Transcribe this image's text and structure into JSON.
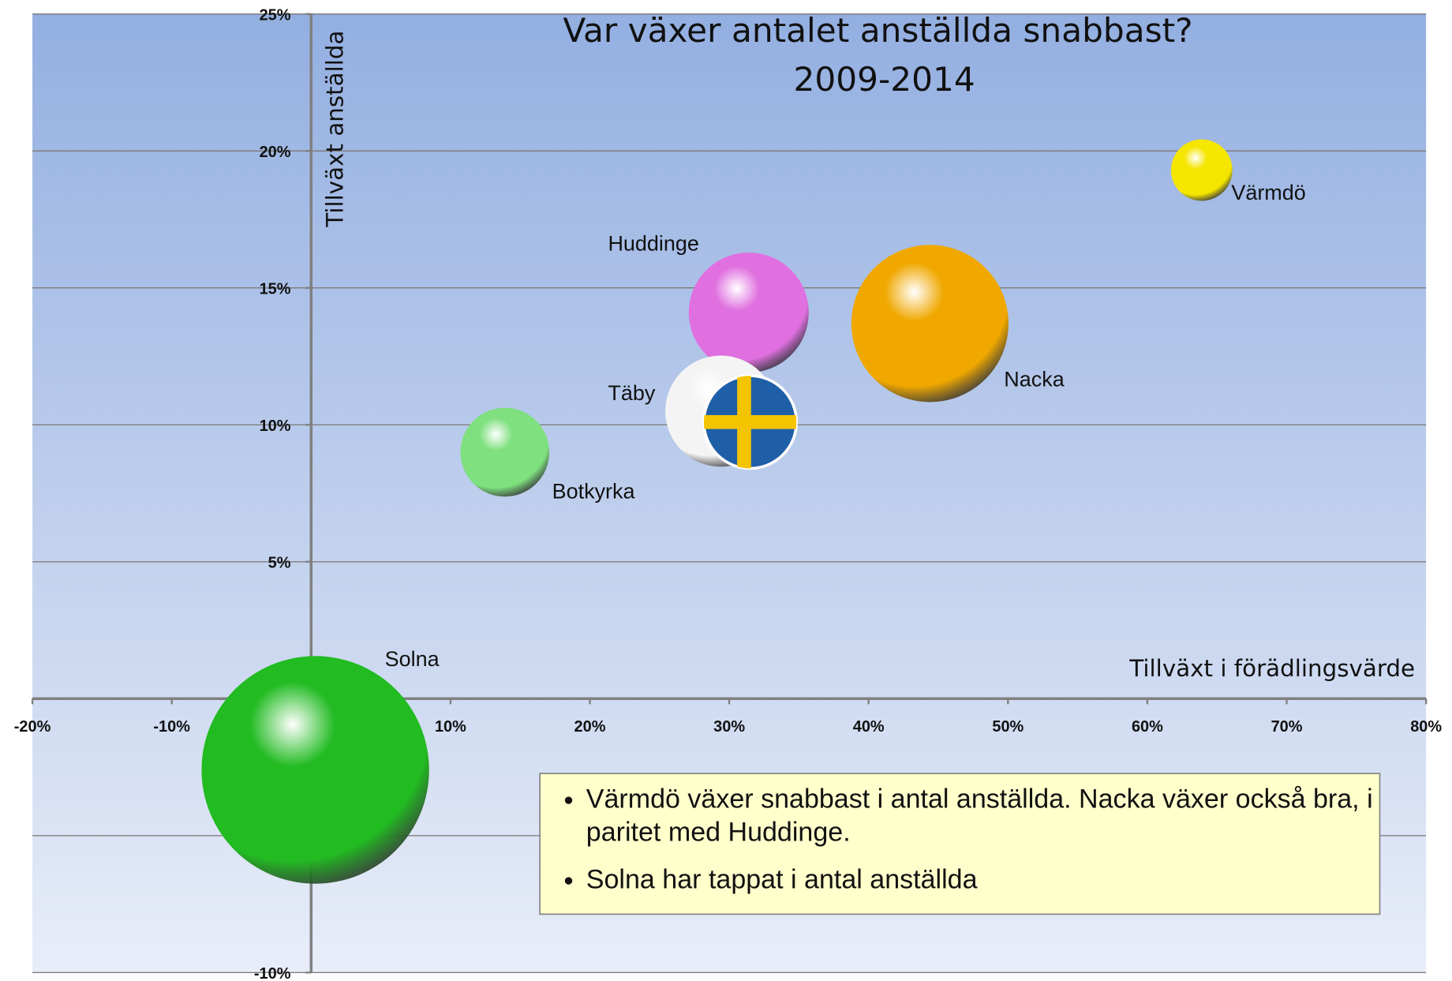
{
  "chart_data": {
    "type": "bubble",
    "title": "Var växer antalet anställda snabbast?",
    "subtitle": "2009-2014",
    "x_label": "Tillväxt i förädlingsvärde",
    "y_label": "Tillväxt anställda",
    "xlim": [
      -20,
      80
    ],
    "ylim": [
      -10,
      25
    ],
    "xticks": [
      {
        "value": -20,
        "label": "-20%"
      },
      {
        "value": -10,
        "label": "-10%"
      },
      {
        "value": 0,
        "label": "0%"
      },
      {
        "value": 10,
        "label": "10%"
      },
      {
        "value": 20,
        "label": "20%"
      },
      {
        "value": 30,
        "label": "30%"
      },
      {
        "value": 40,
        "label": "40%"
      },
      {
        "value": 50,
        "label": "50%"
      },
      {
        "value": 60,
        "label": "60%"
      },
      {
        "value": 70,
        "label": "70%"
      },
      {
        "value": 80,
        "label": "80%"
      }
    ],
    "yticks": [
      {
        "value": -10,
        "label": "-10%"
      },
      {
        "value": -5,
        "label": "-5%"
      },
      {
        "value": 0,
        "label": "0%"
      },
      {
        "value": 5,
        "label": "5%"
      },
      {
        "value": 10,
        "label": "10%"
      },
      {
        "value": 15,
        "label": "15%"
      },
      {
        "value": 20,
        "label": "20%"
      },
      {
        "value": 25,
        "label": "25%"
      }
    ],
    "grid": true,
    "points": [
      {
        "name": "Solna",
        "x": 0.3,
        "y": -2.6,
        "size": 151,
        "color": "#22bb22"
      },
      {
        "name": "Nacka",
        "x": 44.4,
        "y": 13.7,
        "size": 72,
        "color": "#f0a800"
      },
      {
        "name": "Huddinge",
        "x": 31.4,
        "y": 14.1,
        "size": 42,
        "color": "#e070e0"
      },
      {
        "name": "Täby",
        "x": 29.4,
        "y": 10.5,
        "size": 36,
        "color": "#f4f4f4"
      },
      {
        "name": null,
        "x": 31.5,
        "y": 10.1,
        "size": 25,
        "color": "#1f5fa8"
      },
      {
        "name": "Botkyrka",
        "x": 13.9,
        "y": 9.0,
        "size": 23,
        "color": "#7ee07e"
      },
      {
        "name": "Värmdö",
        "x": 63.9,
        "y": 19.3,
        "size": 11,
        "color": "#f5e600"
      }
    ],
    "annotations": [
      "Värmdö växer snabbast i antal anställda. Nacka växer också bra, i paritet med Huddinge.",
      "Solna har tappat i antal anställda"
    ]
  }
}
